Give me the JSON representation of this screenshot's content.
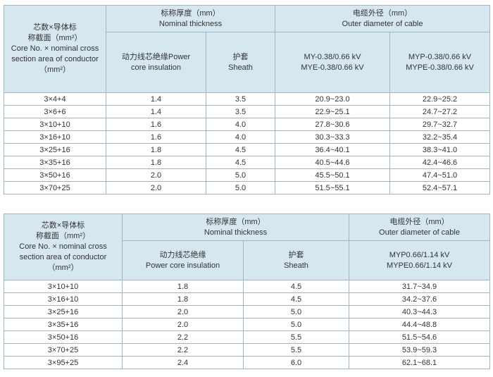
{
  "table1": {
    "header": {
      "core_label": [
        "芯数×导体标",
        "称截面（mm²）",
        "Core No. × nominal cross",
        "section area of conductor",
        "（mm²）"
      ],
      "thickness_group": [
        "标称厚度（mm）",
        "Nominal thickness"
      ],
      "diameter_group": [
        "电缆外径（mm）",
        "Outer diameter of cable"
      ],
      "core_insulation": [
        "动力线芯绝缘Power",
        "core insulation"
      ],
      "sheath": [
        "护套",
        "Sheath"
      ],
      "my_col": [
        "MY-0.38/0.66 kV",
        "MYE-0.38/0.66 kV"
      ],
      "myp_col": [
        "MYP-0.38/0.66 kV",
        "MYPE-0.38/0.66 kV"
      ]
    },
    "rows": [
      [
        "3×4+4",
        "1.4",
        "3.5",
        "20.9~23.0",
        "22.9~25.2"
      ],
      [
        "3×6+6",
        "1.4",
        "3.5",
        "22.9~25.1",
        "24.7~27.2"
      ],
      [
        "3×10+10",
        "1.6",
        "4.0",
        "27.8~30.6",
        "29.7~32.7"
      ],
      [
        "3×16+10",
        "1.6",
        "4.0",
        "30.3~33.3",
        "32.2~35.4"
      ],
      [
        "3×25+16",
        "1.8",
        "4.5",
        "36.4~40.1",
        "38.3~41.0"
      ],
      [
        "3×35+16",
        "1.8",
        "4.5",
        "40.5~44.6",
        "42.4~46.6"
      ],
      [
        "3×50+16",
        "2.0",
        "5.0",
        "45.5~50.1",
        "47.4~51.0"
      ],
      [
        "3×70+25",
        "2.0",
        "5.0",
        "51.5~55.1",
        "52.4~57.1"
      ]
    ]
  },
  "table2": {
    "header": {
      "core_label": [
        "芯数×导体标",
        "称截面（mm²）",
        "Core No. × nominal cross",
        "section area of conductor",
        "（mm²）"
      ],
      "thickness_group": [
        "标称厚度（mm）",
        "Nominal thickness"
      ],
      "diameter_group": [
        "电缆外径（mm）",
        "Outer diameter of cable"
      ],
      "core_insulation": [
        "动力线芯绝缘",
        "Power core insulation"
      ],
      "sheath": [
        "护套",
        "Sheath"
      ],
      "myp_col": [
        "MYP0.66/1.14 kV",
        "MYPE0.66/1.14  kV"
      ]
    },
    "rows": [
      [
        "3×10+10",
        "1.8",
        "4.5",
        "31.7~34.9"
      ],
      [
        "3×16+10",
        "1.8",
        "4.5",
        "34.2~37.6"
      ],
      [
        "3×25+16",
        "2.0",
        "5.0",
        "40.3~44.3"
      ],
      [
        "3×35+16",
        "2.0",
        "5.0",
        "44.4~48.8"
      ],
      [
        "3×50+16",
        "2.2",
        "5.5",
        "51.5~54.6"
      ],
      [
        "3×70+25",
        "2.2",
        "5.5",
        "53.9~59.3"
      ],
      [
        "3×95+25",
        "2.4",
        "6.0",
        "62.1~68.1"
      ]
    ]
  }
}
